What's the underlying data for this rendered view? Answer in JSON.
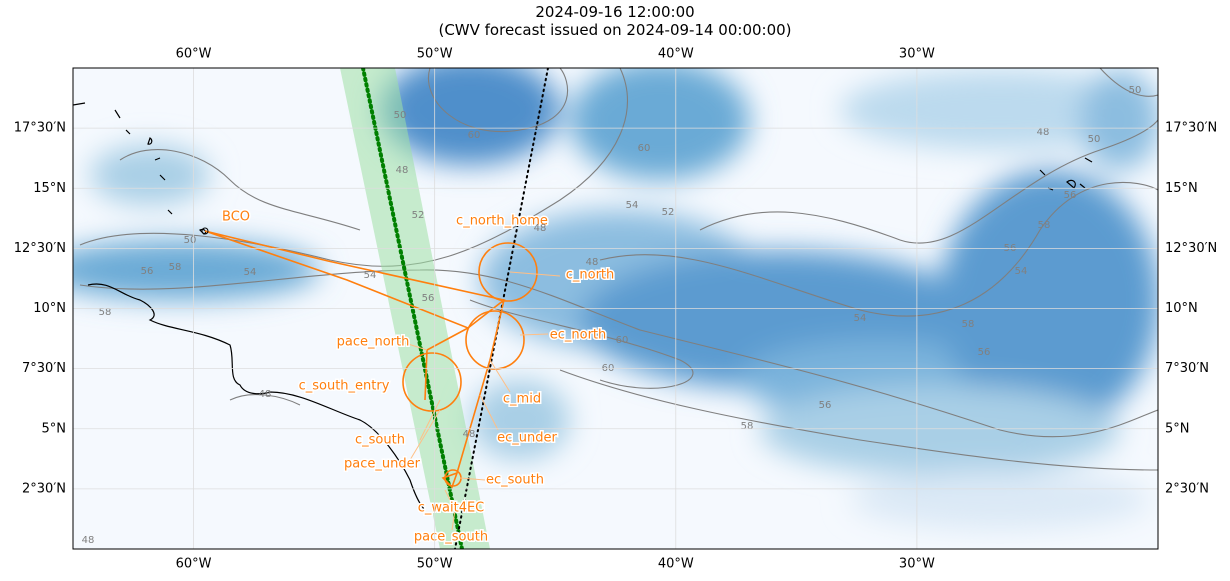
{
  "header": {
    "title": "2024-09-16 12:00:00",
    "subtitle": "(CWV forecast issued on 2024-09-14 00:00:00)"
  },
  "map": {
    "lonlim": [
      -65,
      -20
    ],
    "latlim": [
      0,
      20
    ],
    "lon_ticks": [
      {
        "value": -60,
        "label": "60°W"
      },
      {
        "value": -50,
        "label": "50°W"
      },
      {
        "value": -40,
        "label": "40°W"
      },
      {
        "value": -30,
        "label": "30°W"
      }
    ],
    "lat_ticks": [
      {
        "value": 17.5,
        "label": "17°30′N"
      },
      {
        "value": 15,
        "label": "15°N"
      },
      {
        "value": 12.5,
        "label": "12°30′N"
      },
      {
        "value": 10,
        "label": "10°N"
      },
      {
        "value": 7.5,
        "label": "7°30′N"
      },
      {
        "value": 5,
        "label": "5°N"
      },
      {
        "value": 2.5,
        "label": "2°30′N"
      }
    ],
    "contour_levels": [
      48,
      50,
      52,
      54,
      56,
      58,
      60
    ],
    "places": [
      "BCO",
      "c_north_home",
      "c_north",
      "ec_north",
      "pace_north",
      "c_south_entry",
      "c_mid",
      "c_south",
      "ec_under",
      "pace_under",
      "ec_south",
      "c_wait4EC",
      "pace_south"
    ]
  }
}
